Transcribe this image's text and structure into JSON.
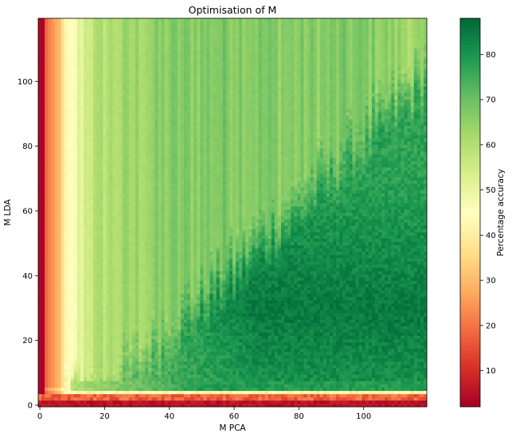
{
  "chart_data": {
    "type": "heatmap",
    "title": "Optimisation of M",
    "xlabel": "M PCA",
    "ylabel": "M LDA",
    "xlim": [
      0,
      119
    ],
    "ylim": [
      0,
      119
    ],
    "x_ticks": [
      0,
      20,
      40,
      60,
      80,
      100
    ],
    "y_ticks": [
      0,
      20,
      40,
      60,
      80,
      100
    ],
    "grid": false,
    "colormap": "RdYlGn",
    "colorbar": {
      "label": "Percentage accuracy",
      "min": 2,
      "max": 88,
      "ticks": [
        10,
        20,
        30,
        40,
        50,
        60,
        70,
        80
      ]
    },
    "colormap_stops": [
      "#a50026",
      "#d73027",
      "#f46d43",
      "#fdae61",
      "#fee08b",
      "#ffffbf",
      "#d9ef8b",
      "#a6d96a",
      "#66bd63",
      "#1a9850",
      "#006837"
    ],
    "accuracy_by_m_pca": [
      [
        0,
        3
      ],
      [
        1,
        3
      ],
      [
        2,
        18
      ],
      [
        4,
        24
      ],
      [
        6,
        30
      ],
      [
        8,
        42
      ],
      [
        10,
        45
      ],
      [
        12,
        50
      ],
      [
        15,
        57
      ],
      [
        20,
        60
      ],
      [
        30,
        63
      ],
      [
        40,
        66
      ],
      [
        60,
        68
      ],
      [
        80,
        66
      ],
      [
        100,
        67
      ],
      [
        118,
        62
      ]
    ],
    "optimum_region": {
      "m_pca_range": [
        20,
        118
      ],
      "m_lda_range": [
        6,
        100
      ],
      "peak_accuracy": 85
    }
  }
}
